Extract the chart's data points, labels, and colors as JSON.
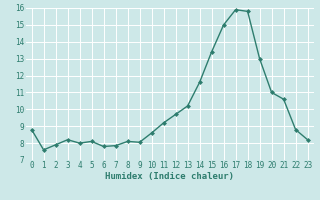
{
  "x": [
    0,
    1,
    2,
    3,
    4,
    5,
    6,
    7,
    8,
    9,
    10,
    11,
    12,
    13,
    14,
    15,
    16,
    17,
    18,
    19,
    20,
    21,
    22,
    23
  ],
  "y": [
    8.8,
    7.6,
    7.9,
    8.2,
    8.0,
    8.1,
    7.8,
    7.85,
    8.1,
    8.05,
    8.6,
    9.2,
    9.7,
    10.2,
    11.6,
    13.4,
    15.0,
    15.9,
    15.8,
    13.0,
    11.0,
    10.6,
    8.8,
    8.2
  ],
  "line_color": "#2e7d6e",
  "marker": "D",
  "marker_size": 2,
  "xlabel": "Humidex (Indice chaleur)",
  "xlim": [
    -0.5,
    23.5
  ],
  "ylim": [
    7,
    16
  ],
  "yticks": [
    7,
    8,
    9,
    10,
    11,
    12,
    13,
    14,
    15,
    16
  ],
  "xticks": [
    0,
    1,
    2,
    3,
    4,
    5,
    6,
    7,
    8,
    9,
    10,
    11,
    12,
    13,
    14,
    15,
    16,
    17,
    18,
    19,
    20,
    21,
    22,
    23
  ],
  "bg_color": "#cde8e8",
  "grid_color": "#ffffff",
  "tick_color": "#2e7d6e",
  "line_width": 1.0,
  "xlabel_fontsize": 6.5,
  "tick_fontsize": 5.5
}
